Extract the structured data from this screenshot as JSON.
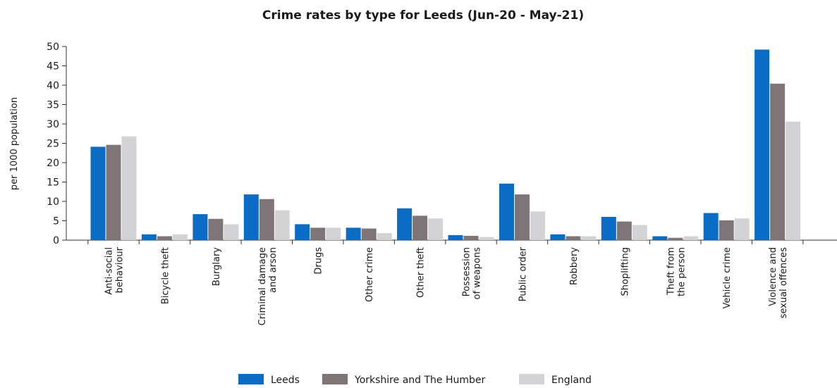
{
  "chart_data": {
    "type": "bar",
    "title": "Crime rates by type for Leeds (Jun-20 - May-21)",
    "ylabel": "per 1000 population",
    "xlabel": "",
    "ylim": [
      0,
      50
    ],
    "yticks": [
      0,
      5,
      10,
      15,
      20,
      25,
      30,
      35,
      40,
      45,
      50
    ],
    "grid": false,
    "legend_position": "bottom",
    "categories": [
      [
        "Anti-social",
        "behaviour"
      ],
      [
        "Bicycle theft"
      ],
      [
        "Burglary"
      ],
      [
        "Criminal damage",
        "and arson"
      ],
      [
        "Drugs"
      ],
      [
        "Other crime"
      ],
      [
        "Other theft"
      ],
      [
        "Possession",
        "of weapons"
      ],
      [
        "Public order"
      ],
      [
        "Robbery"
      ],
      [
        "Shoplifting"
      ],
      [
        "Theft from",
        "the person"
      ],
      [
        "Vehicle crime"
      ],
      [
        "Violence and",
        "sexual offences"
      ]
    ],
    "series": [
      {
        "name": "Leeds",
        "color": "#0a6cc4",
        "values": [
          24.1,
          1.5,
          6.7,
          11.8,
          4.1,
          3.2,
          8.2,
          1.3,
          14.6,
          1.5,
          6.0,
          1.0,
          7.0,
          49.2
        ]
      },
      {
        "name": "Yorkshire and The Humber",
        "color": "#7f7576",
        "values": [
          24.6,
          1.0,
          5.5,
          10.6,
          3.2,
          3.0,
          6.3,
          1.1,
          11.8,
          1.0,
          4.8,
          0.6,
          5.1,
          40.4
        ]
      },
      {
        "name": "England",
        "color": "#d3d3d5",
        "values": [
          26.8,
          1.5,
          4.1,
          7.7,
          3.2,
          1.8,
          5.6,
          0.8,
          7.4,
          1.0,
          3.9,
          1.0,
          5.6,
          30.6
        ]
      }
    ]
  }
}
